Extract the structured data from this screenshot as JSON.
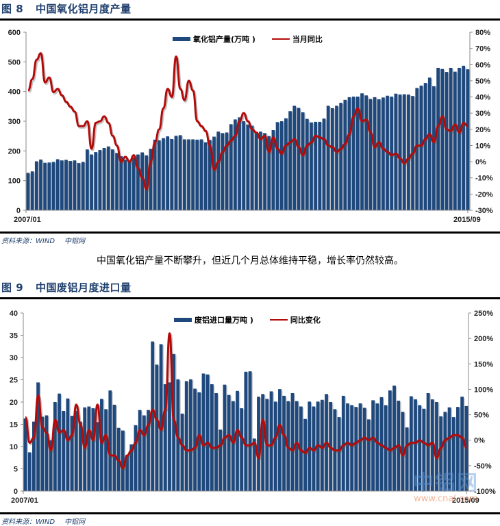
{
  "figure8": {
    "number": "图 8",
    "title": "中国氧化铝月度产量",
    "legend": {
      "bar": "氧化铝产量(万吨 )",
      "line": "当月同比"
    },
    "source": {
      "label": "资料来源：WIND",
      "org": "中铝网"
    }
  },
  "paragraph": "中国氧化铝产量不断攀升，但近几个月总体维持平稳，增长率仍然较高。",
  "figure9": {
    "number": "图 9",
    "title": "中国废铝月度进口量",
    "legend": {
      "bar": "废铝进口量万吨 )",
      "line": "同比变化"
    },
    "source": {
      "label": "资料来源：WIND",
      "org": "中铝网"
    }
  },
  "watermark": {
    "cn": "中铝网",
    "url": "www.cnal.com"
  },
  "colors": {
    "bar": "#1f497d",
    "line": "#b40a0a",
    "axis": "#888888"
  },
  "chart_data": [
    {
      "type": "bar+line",
      "title": "中国氧化铝月度产量",
      "x_start": "2007/01",
      "x_end": "2015/09",
      "xlabels": [
        "2007/01",
        "2015/09"
      ],
      "y_left": {
        "label": "万吨",
        "min": 0,
        "max": 600,
        "ticks": [
          0,
          100,
          200,
          300,
          400,
          500,
          600
        ]
      },
      "y_right": {
        "label": "同比",
        "min": -30,
        "max": 80,
        "ticks": [
          "-30%",
          "-20%",
          "-10%",
          "0%",
          "10%",
          "20%",
          "30%",
          "40%",
          "50%",
          "60%",
          "70%",
          "80%"
        ]
      },
      "legend_position": "top",
      "series": [
        {
          "name": "氧化铝产量(万吨 )",
          "type": "bar",
          "axis": "left",
          "values": [
            126,
            131,
            165,
            171,
            160,
            161,
            163,
            172,
            168,
            170,
            166,
            168,
            159,
            163,
            205,
            188,
            196,
            203,
            210,
            215,
            205,
            193,
            182,
            170,
            165,
            178,
            188,
            195,
            185,
            207,
            238,
            236,
            243,
            249,
            240,
            251,
            253,
            239,
            239,
            239,
            238,
            239,
            229,
            237,
            248,
            265,
            260,
            262,
            290,
            306,
            313,
            300,
            289,
            285,
            262,
            265,
            260,
            250,
            270,
            297,
            300,
            310,
            334,
            352,
            345,
            330,
            308,
            296,
            298,
            298,
            309,
            352,
            344,
            352,
            362,
            372,
            381,
            383,
            383,
            394,
            387,
            375,
            381,
            374,
            380,
            386,
            383,
            393,
            390,
            391,
            390,
            385,
            412,
            420,
            429,
            447,
            418,
            480,
            476,
            466,
            480,
            467,
            480,
            487,
            475
          ]
        },
        {
          "name": "当月同比",
          "type": "line",
          "axis": "right",
          "values": [
            44,
            51,
            63,
            67,
            49,
            52,
            43,
            45,
            41,
            37,
            34,
            31,
            22,
            22,
            25,
            8,
            24,
            25,
            28,
            24,
            16,
            10,
            0,
            3,
            0,
            4,
            -4,
            -10,
            -17,
            0,
            12,
            20,
            33,
            45,
            40,
            65,
            45,
            38,
            50,
            44,
            25,
            22,
            19,
            10,
            -5,
            0,
            6,
            10,
            13,
            16,
            25,
            30,
            25,
            20,
            18,
            14,
            16,
            6,
            15,
            8,
            5,
            10,
            12,
            14,
            9,
            4,
            10,
            12,
            16,
            15,
            14,
            10,
            9,
            6,
            8,
            11,
            17,
            28,
            33,
            25,
            26,
            18,
            9,
            12,
            8,
            6,
            4,
            5,
            2,
            -1,
            2,
            5,
            10,
            10,
            14,
            17,
            12,
            22,
            28,
            20,
            19,
            23,
            18,
            24,
            22
          ]
        }
      ]
    },
    {
      "type": "bar+line",
      "title": "中国废铝月度进口量",
      "x_start": "2007/01",
      "x_end": "2015/09",
      "xlabels": [
        "2007/01",
        "2015/09"
      ],
      "y_left": {
        "label": "万吨",
        "min": 0,
        "max": 40,
        "ticks": [
          0,
          5,
          10,
          15,
          20,
          25,
          30,
          35,
          40
        ]
      },
      "y_right": {
        "label": "同比",
        "min": -100,
        "max": 250,
        "ticks": [
          "-100%",
          "-50%",
          "0%",
          "50%",
          "100%",
          "150%",
          "200%",
          "250%"
        ]
      },
      "legend_position": "top",
      "series": [
        {
          "name": "废铝进口量万吨 )",
          "type": "bar",
          "axis": "left",
          "values": [
            16.3,
            8.7,
            15.6,
            24.4,
            16.7,
            17.0,
            11.4,
            20.0,
            21.9,
            18.0,
            20.8,
            16.9,
            18.0,
            15.6,
            18.8,
            19.0,
            18.6,
            15.5,
            20.7,
            18.4,
            22.6,
            19.4,
            14.2,
            13.6,
            8.1,
            10.5,
            14.8,
            18.2,
            17.0,
            18.2,
            33.6,
            28.4,
            33.0,
            24.0,
            24.4,
            30.8,
            25.1,
            17.4,
            24.7,
            25.1,
            23.0,
            22.2,
            26.4,
            26.2,
            24.0,
            22.0,
            13.8,
            23.9,
            21.6,
            20.2,
            22.5,
            18.6,
            26.8,
            26.9,
            11.8,
            21.2,
            21.8,
            20.7,
            22.4,
            20.1,
            22.9,
            21.4,
            20.2,
            22.0,
            20.2,
            19.0,
            16.2,
            20.1,
            19.0,
            20.1,
            20.5,
            21.8,
            20.0,
            18.4,
            16.6,
            21.4,
            19.7,
            19.3,
            18.9,
            19.7,
            18.7,
            16.1,
            20.4,
            19.7,
            21.1,
            19.3,
            22.6,
            23.7,
            20.3,
            17.8,
            14.3,
            21.3,
            20.6,
            19.3,
            18.5,
            22.0,
            20.6,
            20.0,
            16.8,
            17.8,
            18.8,
            16.6,
            18.9,
            21.2,
            19.1
          ]
        },
        {
          "name": "同比变化",
          "type": "line",
          "axis": "right",
          "values": [
            45,
            -5,
            5,
            88,
            25,
            15,
            -20,
            40,
            15,
            20,
            0,
            10,
            70,
            30,
            -15,
            20,
            0,
            70,
            -5,
            10,
            -30,
            -30,
            -40,
            -55,
            -30,
            -20,
            -5,
            20,
            10,
            30,
            60,
            40,
            20,
            60,
            210,
            40,
            5,
            -10,
            -20,
            -20,
            -15,
            10,
            -10,
            -5,
            -15,
            -15,
            -10,
            5,
            10,
            -5,
            20,
            5,
            -10,
            -10,
            -5,
            -35,
            40,
            -10,
            -10,
            5,
            30,
            10,
            -15,
            -20,
            -5,
            -20,
            -25,
            -15,
            -20,
            -10,
            -15,
            -5,
            -15,
            -20,
            -20,
            -10,
            -5,
            -10,
            -5,
            0,
            5,
            0,
            5,
            -5,
            -10,
            -15,
            -20,
            -15,
            -10,
            -30,
            -10,
            -5,
            -5,
            0,
            -5,
            -10,
            -5,
            -35,
            -15,
            0,
            5,
            10,
            10,
            5,
            -15
          ]
        }
      ]
    }
  ]
}
